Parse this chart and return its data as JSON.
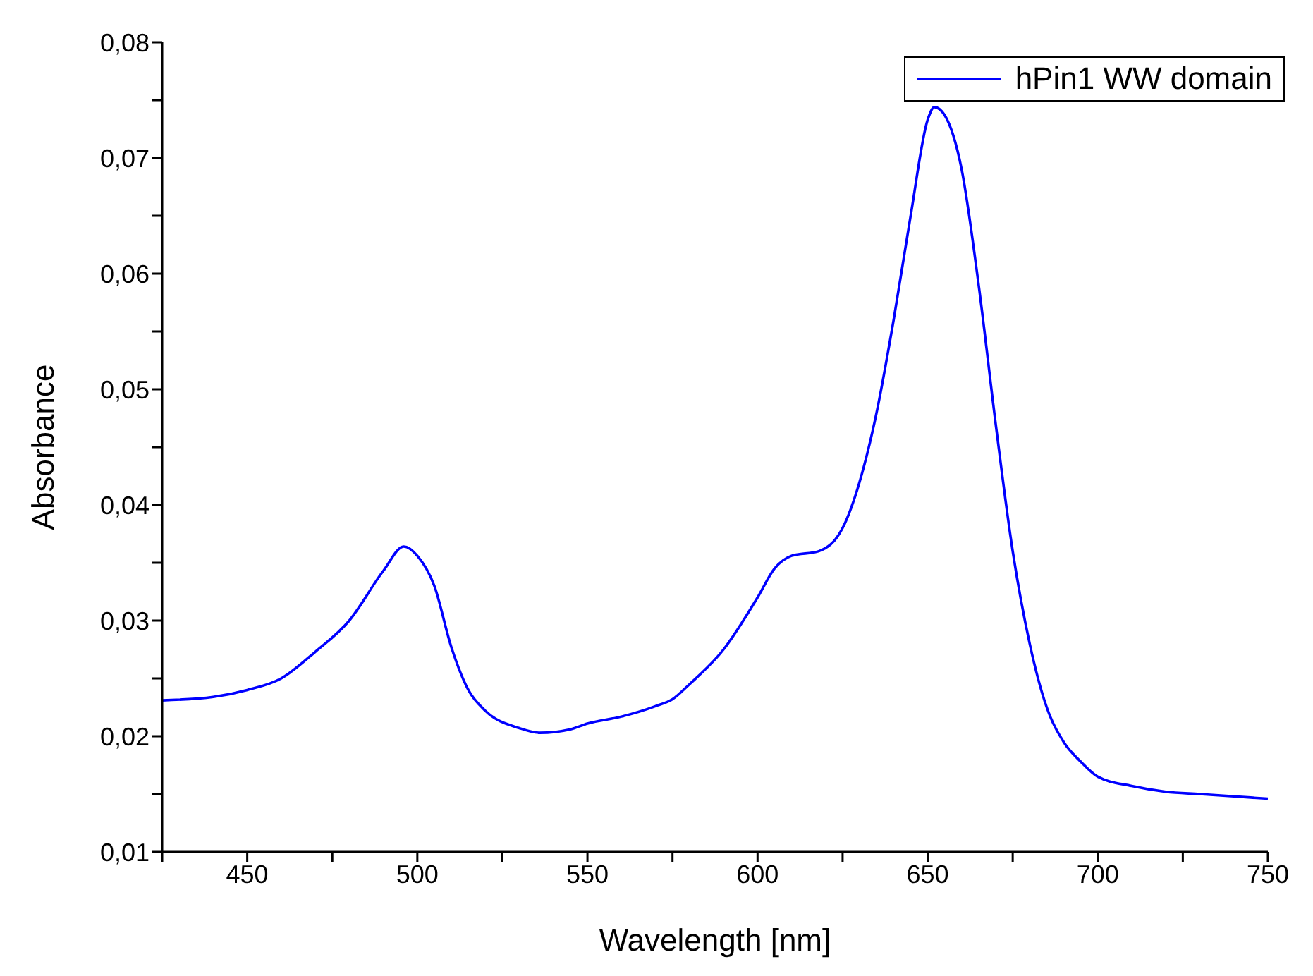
{
  "chart_data": {
    "type": "line",
    "xlabel": "Wavelength [nm]",
    "ylabel": "Absorbance",
    "xlim": [
      425,
      750
    ],
    "ylim": [
      0.01,
      0.08
    ],
    "xticks": [
      {
        "value": 425,
        "label": null
      },
      450,
      {
        "value": 475,
        "label": null
      },
      500,
      {
        "value": 525,
        "label": null
      },
      550,
      {
        "value": 575,
        "label": null
      },
      600,
      {
        "value": 625,
        "label": null
      },
      650,
      {
        "value": 675,
        "label": null
      },
      700,
      {
        "value": 725,
        "label": null
      },
      750
    ],
    "yticks": [
      {
        "value": 0.01,
        "label": "0,01"
      },
      {
        "value": 0.015,
        "label": null
      },
      {
        "value": 0.02,
        "label": "0,02"
      },
      {
        "value": 0.025,
        "label": null
      },
      {
        "value": 0.03,
        "label": "0,03"
      },
      {
        "value": 0.035,
        "label": null
      },
      {
        "value": 0.04,
        "label": "0,04"
      },
      {
        "value": 0.045,
        "label": null
      },
      {
        "value": 0.05,
        "label": "0,05"
      },
      {
        "value": 0.055,
        "label": null
      },
      {
        "value": 0.06,
        "label": "0,06"
      },
      {
        "value": 0.065,
        "label": null
      },
      {
        "value": 0.07,
        "label": "0,07"
      },
      {
        "value": 0.075,
        "label": null
      },
      {
        "value": 0.08,
        "label": "0,08"
      }
    ],
    "x": [
      425,
      440,
      450,
      460,
      470,
      480,
      490,
      496,
      500,
      505,
      510,
      515,
      520,
      530,
      536,
      545,
      550,
      560,
      570,
      575,
      580,
      590,
      600,
      605,
      610,
      618,
      625,
      630,
      635,
      640,
      645,
      650,
      652,
      655,
      660,
      665,
      670,
      675,
      680,
      685,
      690,
      695,
      700,
      710,
      720,
      730,
      740,
      750
    ],
    "series": [
      {
        "name": "hPin1 WW domain",
        "color": "#0000ff",
        "values": [
          0.0231,
          0.0234,
          0.024,
          0.025,
          0.0273,
          0.03,
          0.0343,
          0.0364,
          0.0356,
          0.033,
          0.0277,
          0.024,
          0.0222,
          0.0207,
          0.0203,
          0.0206,
          0.0211,
          0.0217,
          0.0226,
          0.0232,
          0.0245,
          0.0275,
          0.032,
          0.0345,
          0.0356,
          0.036,
          0.038,
          0.042,
          0.048,
          0.056,
          0.065,
          0.0733,
          0.0744,
          0.0737,
          0.069,
          0.059,
          0.047,
          0.036,
          0.028,
          0.0225,
          0.0195,
          0.0178,
          0.0165,
          0.0157,
          0.0152,
          0.015,
          0.0148,
          0.0146
        ]
      }
    ],
    "legend": "top right",
    "grid": false,
    "marker": "none",
    "line_style": "solid"
  }
}
